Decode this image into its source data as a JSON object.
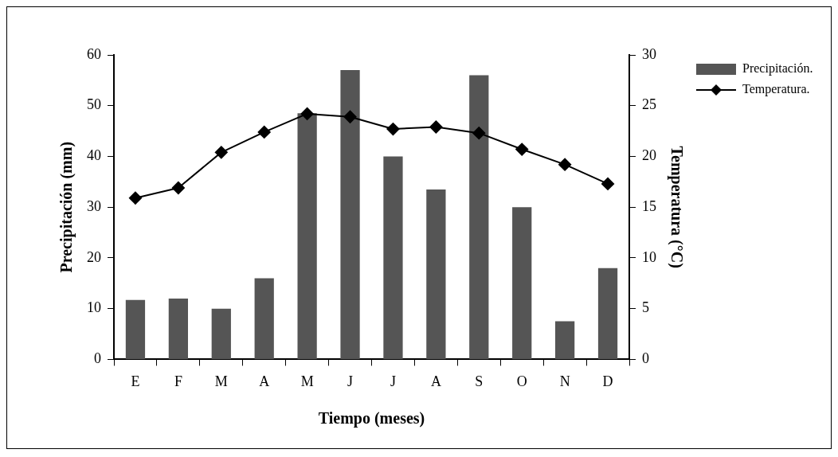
{
  "chart_data": {
    "type": "bar",
    "xlabel": "Tiempo (meses)",
    "ylabel": "Precipitación (mm)",
    "y2label": "Temperatura (°C)",
    "categories": [
      "E",
      "F",
      "M",
      "A",
      "M",
      "J",
      "J",
      "A",
      "S",
      "O",
      "N",
      "D"
    ],
    "series": [
      {
        "name": "Precipitación.",
        "color": "#555555",
        "values": [
          11.7,
          12,
          10,
          16,
          48.5,
          57,
          40,
          33.5,
          56,
          30,
          7.5,
          18
        ]
      },
      {
        "name": "Temperatura.",
        "type": "line",
        "axis": "y2",
        "color": "#000000",
        "values": [
          15.9,
          16.9,
          20.4,
          22.4,
          24.2,
          23.9,
          22.7,
          22.9,
          22.3,
          20.7,
          19.2,
          17.3
        ]
      }
    ],
    "ylim": [
      0,
      60
    ],
    "yticks": [
      0,
      10,
      20,
      30,
      40,
      50,
      60
    ],
    "y2lim": [
      0,
      30
    ],
    "y2ticks": [
      0,
      5,
      10,
      15,
      20,
      25,
      30
    ],
    "grid": false,
    "legend": "top right",
    "marker": "diamond",
    "line_style": "solid"
  }
}
